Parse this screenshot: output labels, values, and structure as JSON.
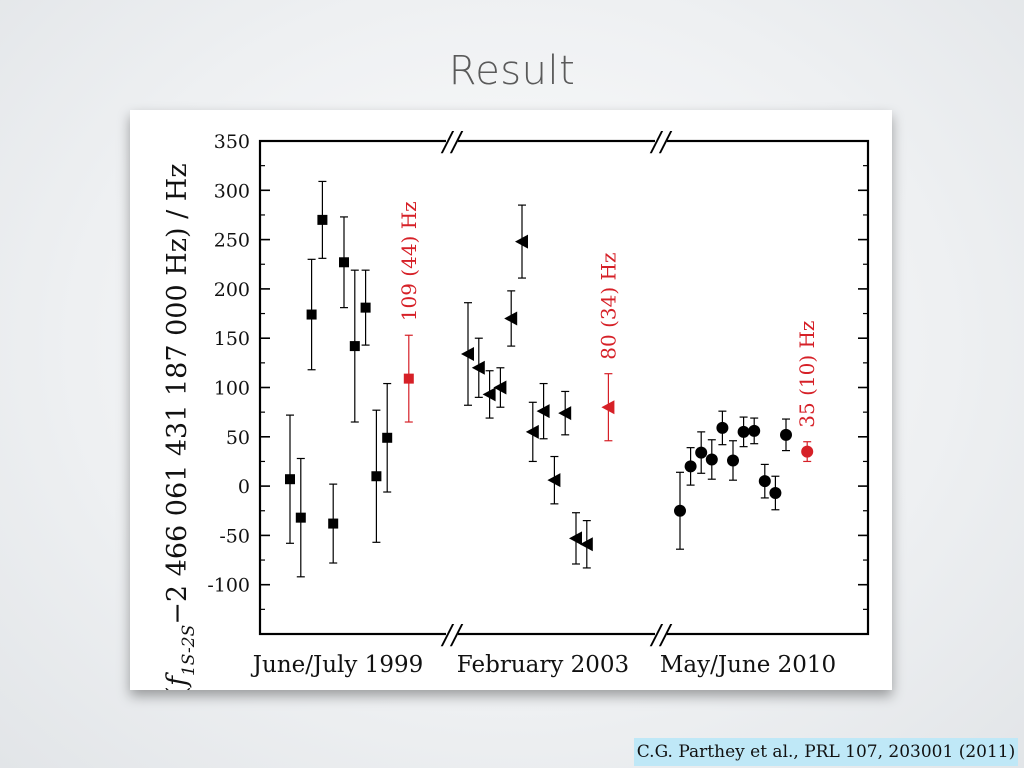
{
  "slide": {
    "title": "Result",
    "citation": "C.G. Parthey et al., PRL 107, 203001 (2011)"
  },
  "chart_data": {
    "type": "scatter",
    "ylabel_parts": {
      "open": "(",
      "f": "f",
      "sub": "1S-2S",
      "rest": "−2 466 061 431 187 000 Hz) / Hz"
    },
    "ylim": [
      -150,
      350
    ],
    "yticks": [
      -100,
      -50,
      0,
      50,
      100,
      150,
      200,
      250,
      300,
      350
    ],
    "grid": false,
    "axis_breaks": [
      "//",
      "//"
    ],
    "groups": [
      {
        "label": "June/July 1999"
      },
      {
        "label": "February 2003"
      },
      {
        "label": "May/June 2010"
      }
    ],
    "series": [
      {
        "marker": "square",
        "color": "#000000",
        "points": [
          {
            "x": 1,
            "y": 7,
            "err": 65
          },
          {
            "x": 2,
            "y": -32,
            "err": 60
          },
          {
            "x": 3,
            "y": 174,
            "err": 56
          },
          {
            "x": 4,
            "y": 270,
            "err": 39
          },
          {
            "x": 5,
            "y": -38,
            "err": 40
          },
          {
            "x": 6,
            "y": 227,
            "err": 46
          },
          {
            "x": 7,
            "y": 142,
            "err": 77
          },
          {
            "x": 8,
            "y": 181,
            "err": 38
          },
          {
            "x": 9,
            "y": 10,
            "err": 67
          },
          {
            "x": 10,
            "y": 49,
            "err": 55
          }
        ]
      },
      {
        "marker": "square",
        "color": "#d62027",
        "points": [
          {
            "x": 12,
            "y": 109,
            "err": 44
          }
        ],
        "annotation": "109 (44) Hz"
      },
      {
        "marker": "triangle-left",
        "color": "#000000",
        "points": [
          {
            "x": 1,
            "y": 134,
            "err": 52
          },
          {
            "x": 2,
            "y": 120,
            "err": 30
          },
          {
            "x": 3,
            "y": 93,
            "err": 24
          },
          {
            "x": 4,
            "y": 100,
            "err": 20
          },
          {
            "x": 5,
            "y": 170,
            "err": 28
          },
          {
            "x": 6,
            "y": 248,
            "err": 37
          },
          {
            "x": 7,
            "y": 55,
            "err": 30
          },
          {
            "x": 8,
            "y": 76,
            "err": 28
          },
          {
            "x": 9,
            "y": 6,
            "err": 24
          },
          {
            "x": 10,
            "y": 74,
            "err": 22
          },
          {
            "x": 11,
            "y": -53,
            "err": 26
          },
          {
            "x": 12,
            "y": -59,
            "err": 24
          }
        ]
      },
      {
        "marker": "triangle-left",
        "color": "#d62027",
        "points": [
          {
            "x": 14,
            "y": 80,
            "err": 34
          }
        ],
        "annotation": "80 (34) Hz"
      },
      {
        "marker": "circle",
        "color": "#000000",
        "points": [
          {
            "x": 1,
            "y": -25,
            "err": 39
          },
          {
            "x": 2,
            "y": 20,
            "err": 19
          },
          {
            "x": 3,
            "y": 34,
            "err": 21
          },
          {
            "x": 4,
            "y": 27,
            "err": 20
          },
          {
            "x": 5,
            "y": 59,
            "err": 17
          },
          {
            "x": 6,
            "y": 26,
            "err": 20
          },
          {
            "x": 7,
            "y": 55,
            "err": 15
          },
          {
            "x": 8,
            "y": 56,
            "err": 13
          },
          {
            "x": 9,
            "y": 5,
            "err": 17
          },
          {
            "x": 10,
            "y": -7,
            "err": 17
          },
          {
            "x": 11,
            "y": 52,
            "err": 16
          }
        ]
      },
      {
        "marker": "circle",
        "color": "#d62027",
        "points": [
          {
            "x": 13,
            "y": 35,
            "err": 10
          }
        ],
        "annotation": "35 (10) Hz"
      }
    ]
  }
}
